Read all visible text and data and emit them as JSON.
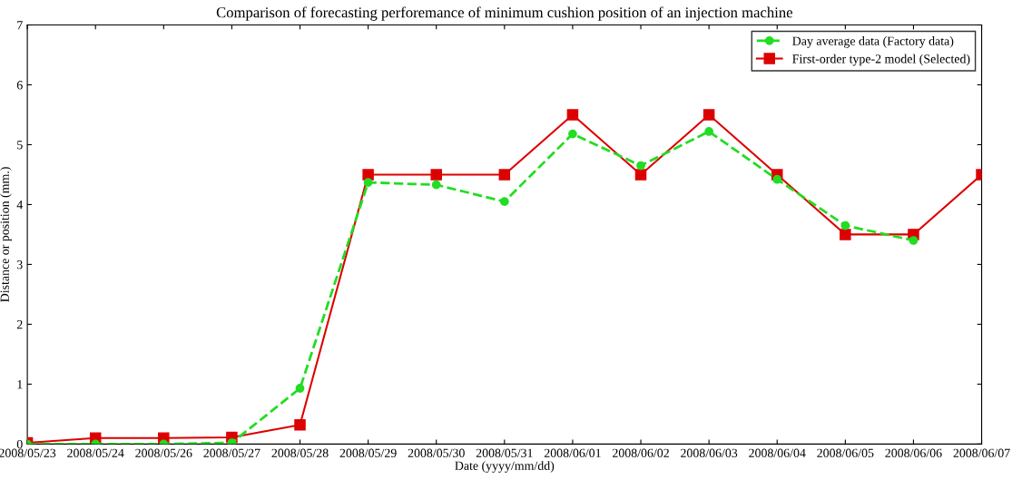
{
  "chart_data": {
    "type": "line",
    "title": "Comparison of forecasting perforemance of minimum cushion position of an injection machine",
    "xlabel": "Date (yyyy/mm/dd)",
    "ylabel": "Distance or position (mm.)",
    "categories": [
      "2008/05/23",
      "2008/05/24",
      "2008/05/26",
      "2008/05/27",
      "2008/05/28",
      "2008/05/29",
      "2008/05/30",
      "2008/05/31",
      "2008/06/01",
      "2008/06/02",
      "2008/06/03",
      "2008/06/04",
      "2008/06/05",
      "2008/06/06",
      "2008/06/07"
    ],
    "series": [
      {
        "name": "Day average data (Factory data)",
        "color": "#22dd22",
        "marker": "circle",
        "line_style": "dashed",
        "values": [
          0,
          0,
          0,
          0.02,
          0.93,
          4.37,
          4.33,
          4.05,
          5.18,
          4.65,
          5.22,
          4.42,
          3.65,
          3.4,
          null
        ]
      },
      {
        "name": "First-order type-2 model (Selected)",
        "color": "#dd0000",
        "marker": "square",
        "line_style": "solid",
        "values": [
          0.02,
          0.1,
          0.1,
          0.11,
          0.32,
          4.5,
          4.5,
          4.5,
          5.5,
          4.5,
          5.5,
          4.5,
          3.5,
          3.5,
          4.5
        ]
      }
    ],
    "ylim": [
      0,
      7
    ],
    "yticks": [
      0,
      1,
      2,
      3,
      4,
      5,
      6,
      7
    ],
    "grid": false,
    "legend": "top right"
  }
}
